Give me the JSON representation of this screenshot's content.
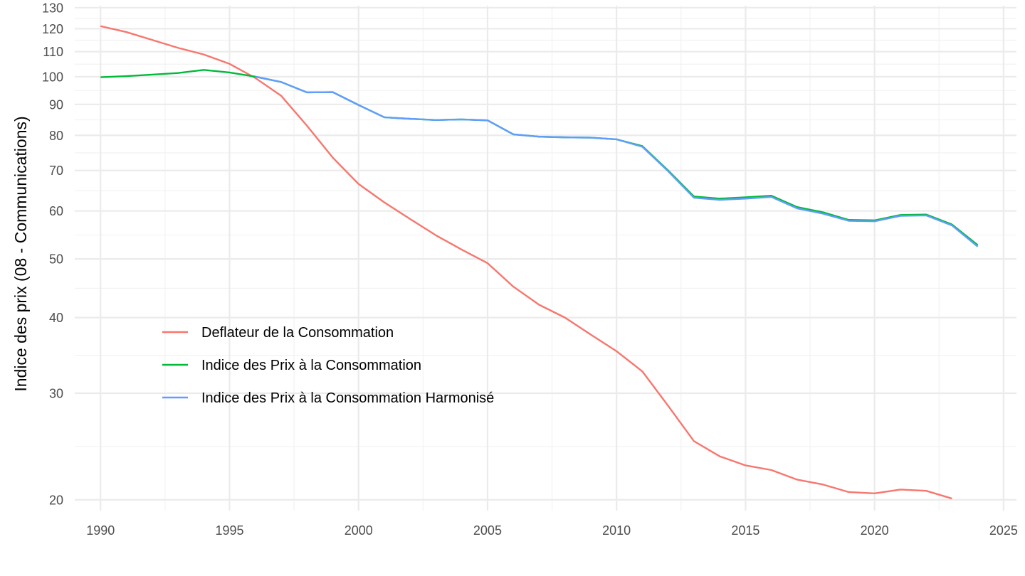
{
  "chart_data": {
    "type": "line",
    "title": "",
    "xlabel": "",
    "ylabel": "Indice des prix (08 - Communications)",
    "yscale": "log",
    "xlim": [
      1989,
      2025.5
    ],
    "ylim": [
      19.2,
      131
    ],
    "grid": true,
    "legend_position": "inside-lower-left",
    "x_ticks": [
      1990,
      1995,
      2000,
      2005,
      2010,
      2015,
      2020,
      2025
    ],
    "y_ticks": [
      20,
      30,
      40,
      50,
      60,
      70,
      80,
      90,
      100,
      110,
      120,
      130
    ],
    "series": [
      {
        "name": "Deflateur de la Consommation",
        "color": "#F8766D",
        "x": [
          1990,
          1991,
          1992,
          1993,
          1994,
          1995,
          1996,
          1997,
          1998,
          1999,
          2000,
          2001,
          2002,
          2003,
          2004,
          2005,
          2006,
          2007,
          2008,
          2009,
          2010,
          2011,
          2012,
          2013,
          2014,
          2015,
          2016,
          2017,
          2018,
          2019,
          2020,
          2021,
          2022,
          2023
        ],
        "values": [
          121.2,
          118.5,
          115.0,
          111.6,
          108.8,
          105.0,
          99.5,
          93.0,
          83.0,
          73.5,
          66.5,
          62.0,
          58.2,
          54.7,
          51.8,
          49.2,
          45.0,
          42.0,
          40.0,
          37.5,
          35.2,
          32.6,
          28.6,
          25.0,
          23.6,
          22.8,
          22.4,
          21.6,
          21.2,
          20.6,
          20.5,
          20.8,
          20.7,
          20.1
        ]
      },
      {
        "name": "Indice des Prix à la Consommation",
        "color": "#00BA38",
        "x": [
          1990,
          1991,
          1992,
          1993,
          1994,
          1995,
          1996,
          1997,
          1998,
          1999,
          2000,
          2001,
          2002,
          2003,
          2004,
          2005,
          2006,
          2007,
          2008,
          2009,
          2010,
          2011,
          2012,
          2013,
          2014,
          2015,
          2016,
          2017,
          2018,
          2019,
          2020,
          2021,
          2022,
          2023,
          2024
        ],
        "values": [
          99.8,
          100.2,
          100.8,
          101.4,
          102.6,
          101.6,
          100.0,
          98.0,
          94.2,
          94.3,
          89.8,
          85.7,
          85.2,
          84.8,
          85.0,
          84.7,
          80.3,
          79.6,
          79.4,
          79.3,
          78.8,
          76.8,
          70.0,
          63.4,
          62.9,
          63.2,
          63.6,
          60.9,
          59.7,
          58.0,
          57.9,
          59.1,
          59.2,
          57.0,
          52.7
        ]
      },
      {
        "name": "Indice des Prix à la Consommation Harmonisé",
        "color": "#619CFF",
        "x": [
          1996,
          1997,
          1998,
          1999,
          2000,
          2001,
          2002,
          2003,
          2004,
          2005,
          2006,
          2007,
          2008,
          2009,
          2010,
          2011,
          2012,
          2013,
          2014,
          2015,
          2016,
          2017,
          2018,
          2019,
          2020,
          2021,
          2022,
          2023,
          2024
        ],
        "values": [
          100.0,
          98.0,
          94.2,
          94.3,
          89.8,
          85.7,
          85.2,
          84.8,
          85.0,
          84.7,
          80.3,
          79.6,
          79.4,
          79.3,
          78.8,
          76.6,
          69.8,
          63.1,
          62.6,
          62.9,
          63.3,
          60.6,
          59.4,
          57.8,
          57.7,
          58.9,
          59.0,
          56.8,
          52.4
        ]
      }
    ]
  }
}
